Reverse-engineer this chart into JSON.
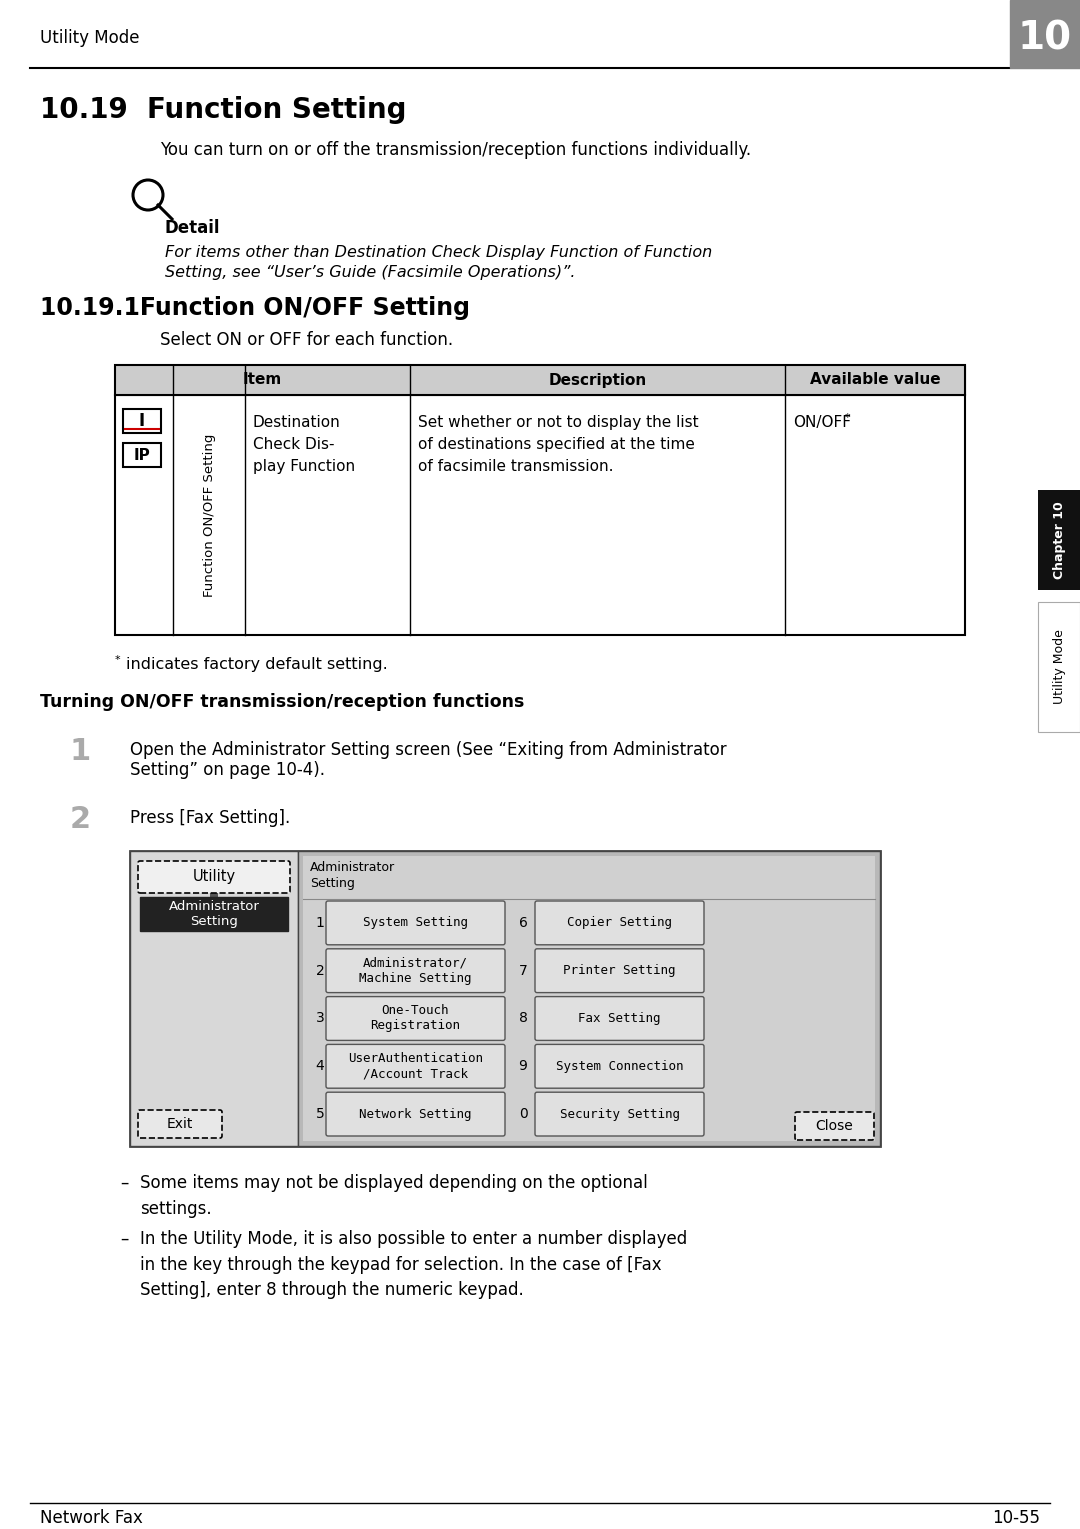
{
  "bg_color": "#ffffff",
  "header_text": "Utility Mode",
  "header_number": "10",
  "section_title": "10.19  Function Setting",
  "section_intro": "You can turn on or off the transmission/reception functions individually.",
  "detail_label": "Detail",
  "detail_italic1": "For items other than Destination Check Display Function of Function",
  "detail_italic2": "Setting, see “User’s Guide (Facsimile Operations)”.",
  "subsection_title": "10.19.1Function ON/OFF Setting",
  "subsection_intro": "Select ON or OFF for each function.",
  "table_col1_sub": "Function ON/OFF Setting",
  "table_icon1": "I",
  "table_icon2": "IP",
  "table_item_name": "Destination\nCheck Dis-\nplay Function",
  "table_desc": "Set whether or not to display the list\nof destinations specified at the time\nof facsimile transmission.",
  "table_avail": "ON/OFF",
  "footnote_star": "*",
  "footnote_text": "indicates factory default setting.",
  "bold_heading": "Turning ON/OFF transmission/reception functions",
  "step1_num": "1",
  "step1_line1": "Open the Administrator Setting screen (See “Exiting from Administrator",
  "step1_line2": "Setting” on page 10-4).",
  "step2_num": "2",
  "step2_text": "Press [Fax Setting].",
  "screen_title": "Administrator\nSetting",
  "screen_btn_utility": "Utility",
  "screen_btn_admin": "Administrator\nSetting",
  "screen_items": [
    [
      "1",
      "System Setting",
      "6",
      "Copier Setting"
    ],
    [
      "2",
      "Administrator/\nMachine Setting",
      "7",
      "Printer Setting"
    ],
    [
      "3",
      "One-Touch\nRegistration",
      "8",
      "Fax Setting"
    ],
    [
      "4",
      "UserAuthentication\n/Account Track",
      "9",
      "System Connection"
    ],
    [
      "5",
      "Network Setting",
      "0",
      "Security Setting"
    ]
  ],
  "screen_exit_btn": "Exit",
  "screen_close_btn": "Close",
  "bullet_dash": "–",
  "bullet_items": [
    "Some items may not be displayed depending on the optional\nsettings.",
    "In the Utility Mode, it is also possible to enter a number displayed\nin the key through the keypad for selection. In the case of [Fax\nSetting], enter 8 through the numeric keypad."
  ],
  "right_tab_top": "Chapter 10",
  "right_tab_bottom": "Utility Mode",
  "footer_left": "Network Fax",
  "footer_right": "10-55"
}
